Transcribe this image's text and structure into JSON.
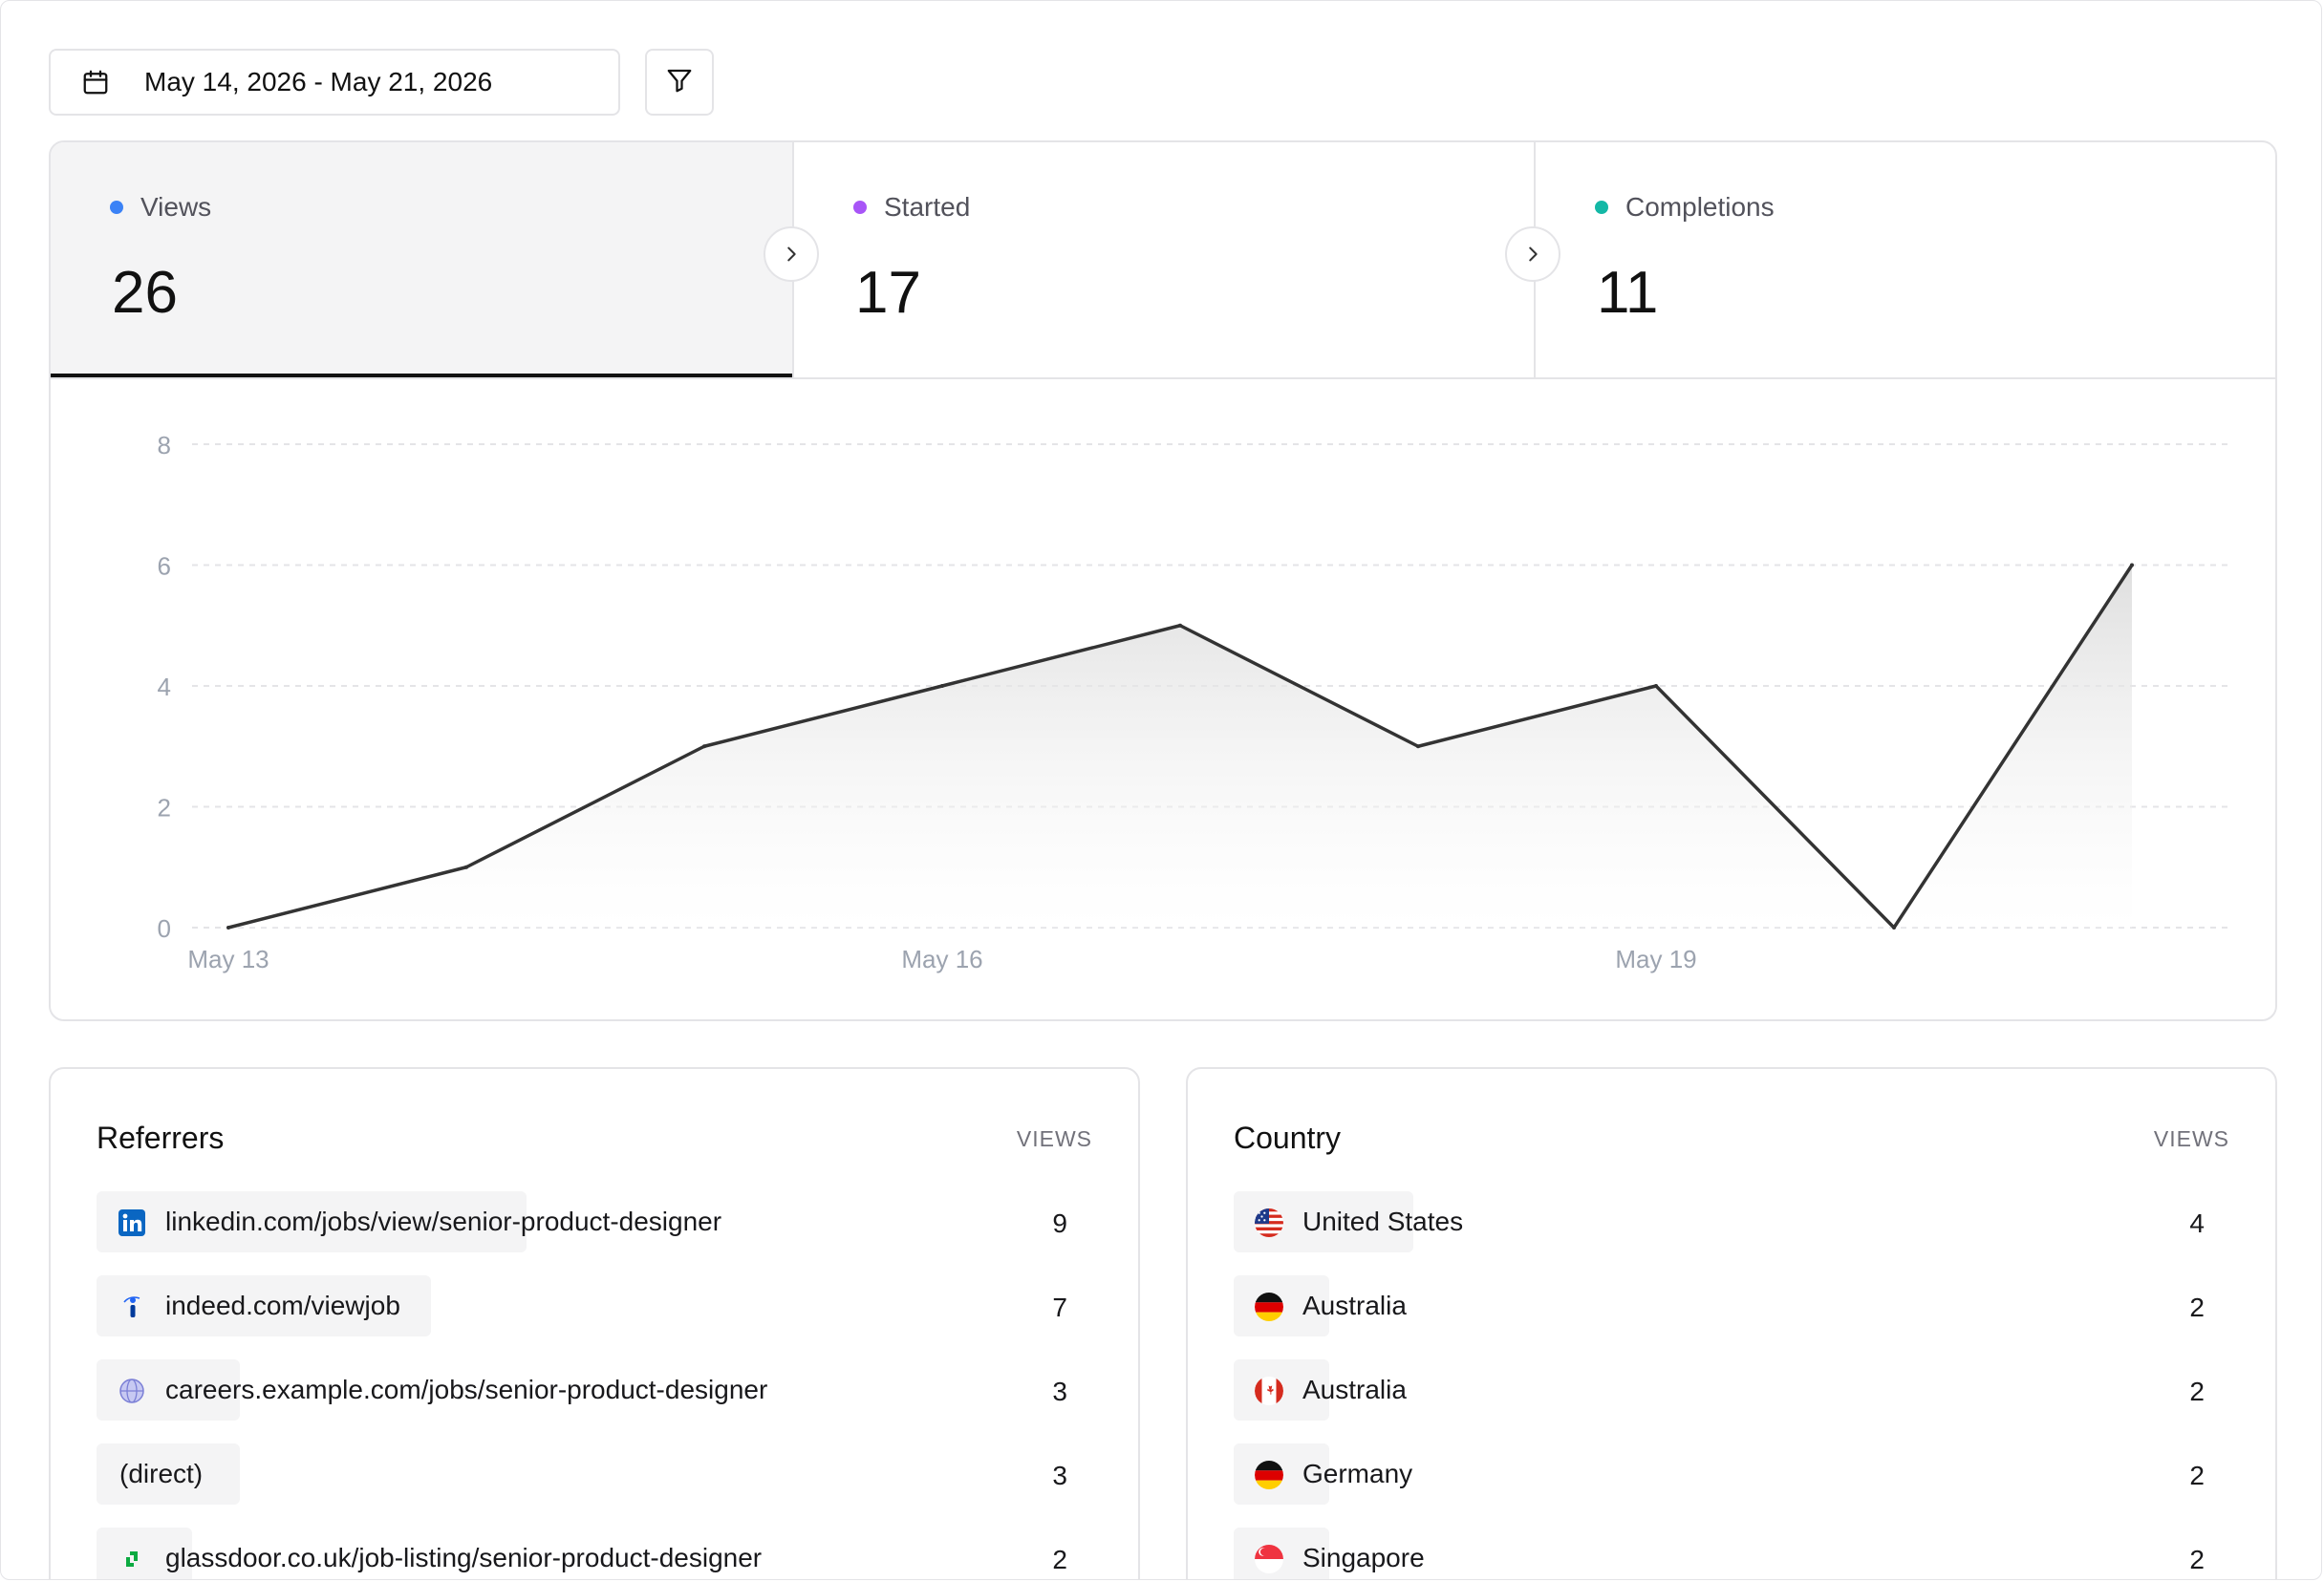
{
  "date_range": {
    "label": "May 14, 2026 - May 21, 2026",
    "icon": "calendar-icon"
  },
  "filter": {
    "icon": "filter-icon"
  },
  "stats": [
    {
      "label": "Views",
      "value": "26",
      "color": "#3b82f6",
      "active": true
    },
    {
      "label": "Started",
      "value": "17",
      "color": "#a855f7",
      "active": false
    },
    {
      "label": "Completions",
      "value": "11",
      "color": "#14b8a6",
      "active": false
    }
  ],
  "chart_data": {
    "type": "area",
    "x": [
      "May 13",
      "May 14",
      "May 15",
      "May 16",
      "May 17",
      "May 18",
      "May 19",
      "May 20",
      "May 21"
    ],
    "series": [
      {
        "values": [
          0,
          1,
          3,
          4,
          5,
          3,
          4,
          0,
          6
        ]
      }
    ],
    "x_tick_labels": [
      "May 13",
      "May 16",
      "May 19"
    ],
    "y_ticks": [
      "0",
      "2",
      "4",
      "6",
      "8"
    ],
    "ylim": [
      0,
      8
    ],
    "grid": "horizontal dashed",
    "line_color": "#333333"
  },
  "referrers": {
    "title": "Referrers",
    "column_header": "VIEWS",
    "rows": [
      {
        "label": "linkedin.com/jobs/view/senior-product-designer",
        "value": "9",
        "share": 0.36,
        "icon": "linkedin-icon"
      },
      {
        "label": "indeed.com/viewjob",
        "value": "7",
        "share": 0.28,
        "icon": "indeed-icon"
      },
      {
        "label": "careers.example.com/jobs/senior-product-designer",
        "value": "3",
        "share": 0.12,
        "icon": "globe-icon"
      },
      {
        "label": "(direct)",
        "value": "3",
        "share": 0.12,
        "icon": ""
      },
      {
        "label": "glassdoor.co.uk/job-listing/senior-product-designer",
        "value": "2",
        "share": 0.08,
        "icon": "glassdoor-icon"
      }
    ]
  },
  "countries": {
    "title": "Country",
    "column_header": "VIEWS",
    "rows": [
      {
        "label": "United States",
        "value": "4",
        "share": 0.15,
        "flag": "us-flag-icon"
      },
      {
        "label": "Australia",
        "value": "2",
        "share": 0.08,
        "flag": "germany-flag-icon"
      },
      {
        "label": "Australia",
        "value": "2",
        "share": 0.08,
        "flag": "canada-flag-icon"
      },
      {
        "label": "Germany",
        "value": "2",
        "share": 0.08,
        "flag": "germany-flag-icon"
      },
      {
        "label": "Singapore",
        "value": "2",
        "share": 0.08,
        "flag": "singapore-flag-icon"
      }
    ]
  }
}
